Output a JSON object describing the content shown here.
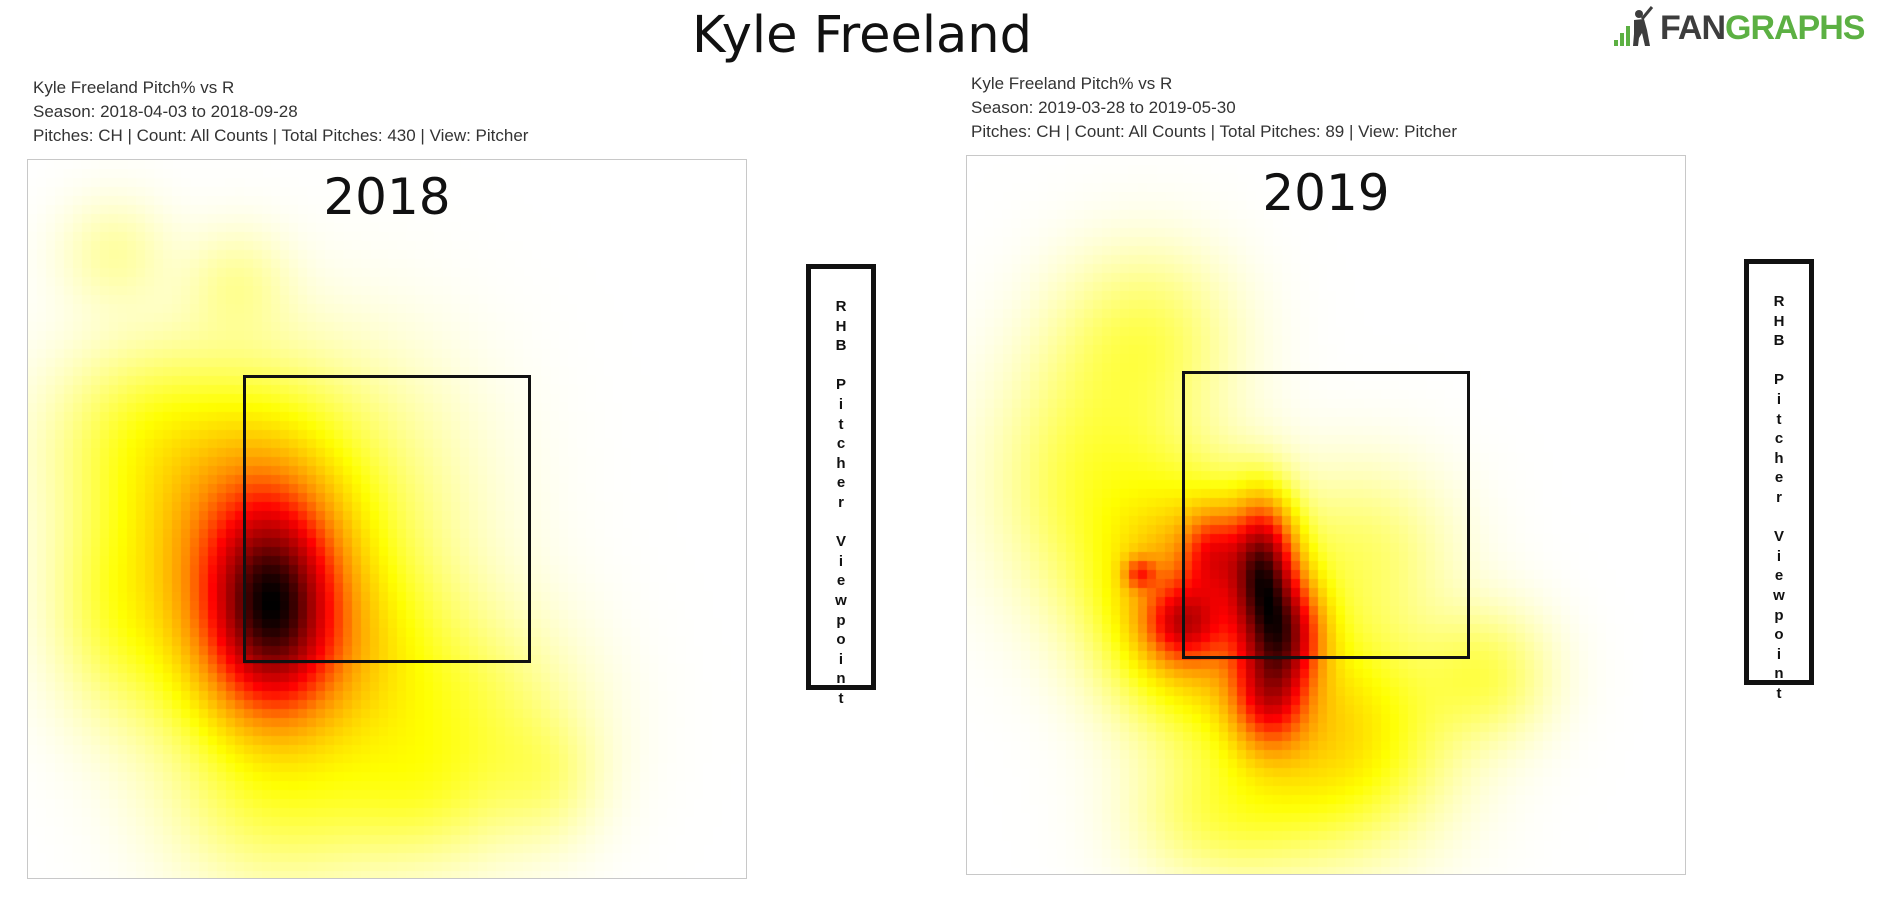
{
  "title": "Kyle Freeland",
  "logo": {
    "text_gray": "FAN",
    "text_green": "GRAPHS",
    "icon": "batter-silhouette-icon",
    "brand_green": "#5cb043"
  },
  "panels": [
    {
      "info_line1": "Kyle Freeland Pitch% vs R",
      "info_line2": "Season: 2018-04-03 to 2018-09-28",
      "info_line3": "Pitches: CH | Count: All Counts | Total Pitches: 430 | View: Pitcher",
      "year": "2018",
      "viewpoint_label": "RHB Pitcher Viewpoint"
    },
    {
      "info_line1": "Kyle Freeland Pitch% vs R",
      "info_line2": "Season: 2019-03-28 to 2019-05-30",
      "info_line3": "Pitches: CH | Count: All Counts | Total Pitches: 89 | View: Pitcher",
      "year": "2019",
      "viewpoint_label": "RHB Pitcher Viewpoint"
    }
  ],
  "chart_data": [
    {
      "type": "heatmap",
      "title": "2018",
      "colormap": [
        "#ffffff",
        "#ffff00",
        "#ff8c00",
        "#ff0000",
        "#8b0000",
        "#000000"
      ],
      "hotspots": [
        {
          "x": 0.34,
          "y": 0.62,
          "sx": 0.055,
          "sy": 0.09,
          "w": 1.0
        },
        {
          "x": 0.31,
          "y": 0.56,
          "sx": 0.09,
          "sy": 0.12,
          "w": 0.55
        },
        {
          "x": 0.38,
          "y": 0.7,
          "sx": 0.12,
          "sy": 0.1,
          "w": 0.4
        },
        {
          "x": 0.26,
          "y": 0.45,
          "sx": 0.12,
          "sy": 0.12,
          "w": 0.18
        },
        {
          "x": 0.15,
          "y": 0.38,
          "sx": 0.08,
          "sy": 0.08,
          "w": 0.12
        },
        {
          "x": 0.12,
          "y": 0.13,
          "sx": 0.05,
          "sy": 0.05,
          "w": 0.08
        },
        {
          "x": 0.29,
          "y": 0.17,
          "sx": 0.05,
          "sy": 0.05,
          "w": 0.08
        },
        {
          "x": 0.45,
          "y": 0.48,
          "sx": 0.12,
          "sy": 0.14,
          "w": 0.12
        },
        {
          "x": 0.62,
          "y": 0.78,
          "sx": 0.1,
          "sy": 0.1,
          "w": 0.14
        },
        {
          "x": 0.35,
          "y": 0.9,
          "sx": 0.1,
          "sy": 0.08,
          "w": 0.14
        },
        {
          "x": 0.12,
          "y": 0.62,
          "sx": 0.06,
          "sy": 0.1,
          "w": 0.14
        },
        {
          "x": 0.54,
          "y": 0.88,
          "sx": 0.08,
          "sy": 0.07,
          "w": 0.12
        },
        {
          "x": 0.72,
          "y": 0.86,
          "sx": 0.05,
          "sy": 0.06,
          "w": 0.08
        }
      ],
      "strike_zone": {
        "left": 0.3,
        "top": 0.3,
        "right": 0.7,
        "bottom": 0.7
      }
    },
    {
      "type": "heatmap",
      "title": "2019",
      "colormap": [
        "#ffffff",
        "#ffff00",
        "#ff8c00",
        "#ff0000",
        "#8b0000",
        "#000000"
      ],
      "hotspots": [
        {
          "x": 0.41,
          "y": 0.57,
          "sx": 0.03,
          "sy": 0.06,
          "w": 0.9
        },
        {
          "x": 0.44,
          "y": 0.66,
          "sx": 0.035,
          "sy": 0.05,
          "w": 0.75
        },
        {
          "x": 0.42,
          "y": 0.75,
          "sx": 0.035,
          "sy": 0.05,
          "w": 0.55
        },
        {
          "x": 0.32,
          "y": 0.62,
          "sx": 0.08,
          "sy": 0.1,
          "w": 0.5
        },
        {
          "x": 0.3,
          "y": 0.65,
          "sx": 0.035,
          "sy": 0.035,
          "w": 0.45
        },
        {
          "x": 0.24,
          "y": 0.58,
          "sx": 0.015,
          "sy": 0.015,
          "w": 0.35
        },
        {
          "x": 0.34,
          "y": 0.55,
          "sx": 0.025,
          "sy": 0.04,
          "w": 0.35
        },
        {
          "x": 0.18,
          "y": 0.45,
          "sx": 0.09,
          "sy": 0.12,
          "w": 0.15
        },
        {
          "x": 0.25,
          "y": 0.25,
          "sx": 0.08,
          "sy": 0.08,
          "w": 0.11
        },
        {
          "x": 0.5,
          "y": 0.8,
          "sx": 0.1,
          "sy": 0.1,
          "w": 0.3
        },
        {
          "x": 0.55,
          "y": 0.55,
          "sx": 0.08,
          "sy": 0.08,
          "w": 0.1
        },
        {
          "x": 0.72,
          "y": 0.72,
          "sx": 0.06,
          "sy": 0.06,
          "w": 0.12
        },
        {
          "x": 0.35,
          "y": 0.92,
          "sx": 0.08,
          "sy": 0.06,
          "w": 0.1
        }
      ],
      "strike_zone": {
        "left": 0.3,
        "top": 0.3,
        "right": 0.7,
        "bottom": 0.7
      }
    }
  ]
}
